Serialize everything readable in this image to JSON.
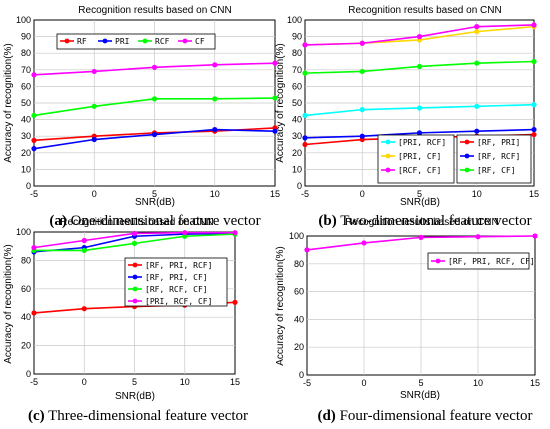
{
  "chart_data": [
    {
      "type": "line",
      "title": "Recognition results based on CNN",
      "xlabel": "SNR(dB)",
      "ylabel": "Accuracy of recognition(%)",
      "caption_letter": "(a)",
      "caption_text": "One-dimensional feature vector",
      "x": [
        -5,
        0,
        5,
        10,
        15
      ],
      "xlim": [
        -5,
        15
      ],
      "ylim": [
        0,
        100
      ],
      "xticks": [
        "-5",
        "0",
        "5",
        "10",
        "15"
      ],
      "yticks": [
        "0",
        "10",
        "20",
        "30",
        "40",
        "50",
        "60",
        "70",
        "80",
        "90",
        "100"
      ],
      "grid": true,
      "legend_position": "top",
      "series": [
        {
          "name": "RF",
          "color": "#ff0000",
          "values": [
            27.5,
            30,
            32,
            33,
            35
          ]
        },
        {
          "name": "PRI",
          "color": "#0000ff",
          "values": [
            22.5,
            28,
            31,
            34,
            33
          ]
        },
        {
          "name": "RCF",
          "color": "#00ff00",
          "values": [
            42.5,
            48,
            52.5,
            52.5,
            53
          ]
        },
        {
          "name": "CF",
          "color": "#ff00ff",
          "values": [
            67,
            69,
            71.5,
            73,
            74
          ]
        }
      ]
    },
    {
      "type": "line",
      "title": "Recognition results based on CNN",
      "xlabel": "SNR(dB)",
      "ylabel": "Accuracy of recognition(%)",
      "caption_letter": "(b)",
      "caption_text": "Two-dimensional feature vector",
      "x": [
        -5,
        0,
        5,
        10,
        15
      ],
      "xlim": [
        -5,
        15
      ],
      "ylim": [
        0,
        100
      ],
      "xticks": [
        "-5",
        "0",
        "5",
        "10",
        "15"
      ],
      "yticks": [
        "0",
        "10",
        "20",
        "30",
        "40",
        "50",
        "60",
        "70",
        "80",
        "90",
        "100"
      ],
      "grid": true,
      "legend_position": "bottom",
      "series": [
        {
          "name": "[PRI, RCF]",
          "color": "#00ffff",
          "values": [
            42.5,
            46,
            47,
            48,
            49
          ]
        },
        {
          "name": "[PRI, CF]",
          "color": "#ffd700",
          "values": [
            85,
            86,
            88,
            93,
            96
          ]
        },
        {
          "name": "[RCF, CF]",
          "color": "#ff00ff",
          "values": [
            85,
            86,
            90,
            96,
            97
          ]
        },
        {
          "name": "[RF, PRI]",
          "color": "#ff0000",
          "values": [
            25,
            28,
            29,
            30,
            31
          ]
        },
        {
          "name": "[RF, RCF]",
          "color": "#0000ff",
          "values": [
            29,
            30,
            32,
            33,
            34
          ]
        },
        {
          "name": "[RF, CF]",
          "color": "#00ff00",
          "values": [
            68,
            69,
            72,
            74,
            75
          ]
        }
      ]
    },
    {
      "type": "line",
      "title": "Recognition results based on CNN",
      "xlabel": "SNR(dB)",
      "ylabel": "Accuracy of recognition(%)",
      "caption_letter": "(c)",
      "caption_text": "Three-dimensional feature vector",
      "x": [
        -5,
        0,
        5,
        10,
        15
      ],
      "xlim": [
        -5,
        15
      ],
      "ylim": [
        0,
        100
      ],
      "xticks": [
        "-5",
        "0",
        "5",
        "10",
        "15"
      ],
      "yticks": [
        "0",
        "20",
        "40",
        "60",
        "80",
        "100"
      ],
      "grid": true,
      "legend_position": "right",
      "series": [
        {
          "name": "[RF, PRI, RCF]",
          "color": "#ff0000",
          "values": [
            43,
            46,
            47.5,
            48.5,
            50.5
          ]
        },
        {
          "name": "[RF, PRI, CF]",
          "color": "#0000ff",
          "values": [
            86,
            89,
            97,
            98.5,
            99
          ]
        },
        {
          "name": "[RF, RCF, CF]",
          "color": "#00ff00",
          "values": [
            87,
            87,
            92,
            97,
            98.5
          ]
        },
        {
          "name": "[PRI, RCF, CF]",
          "color": "#ff00ff",
          "values": [
            89,
            94,
            99,
            99.5,
            99.5
          ]
        }
      ]
    },
    {
      "type": "line",
      "title": "Recognition results based on CNN",
      "xlabel": "SNR(dB)",
      "ylabel": "Accuracy of recognition(%)",
      "caption_letter": "(d)",
      "caption_text": "Four-dimensional feature vector",
      "x": [
        -5,
        0,
        5,
        10,
        15
      ],
      "xlim": [
        -5,
        15
      ],
      "ylim": [
        0,
        100
      ],
      "xticks": [
        "-5",
        "0",
        "5",
        "10",
        "15"
      ],
      "yticks": [
        "0",
        "20",
        "40",
        "60",
        "80",
        "100"
      ],
      "grid": true,
      "legend_position": "top-right",
      "series": [
        {
          "name": "[RF, PRI, RCF, CF]",
          "color": "#ff00ff",
          "values": [
            90,
            95,
            99,
            99.5,
            100
          ]
        }
      ]
    }
  ]
}
